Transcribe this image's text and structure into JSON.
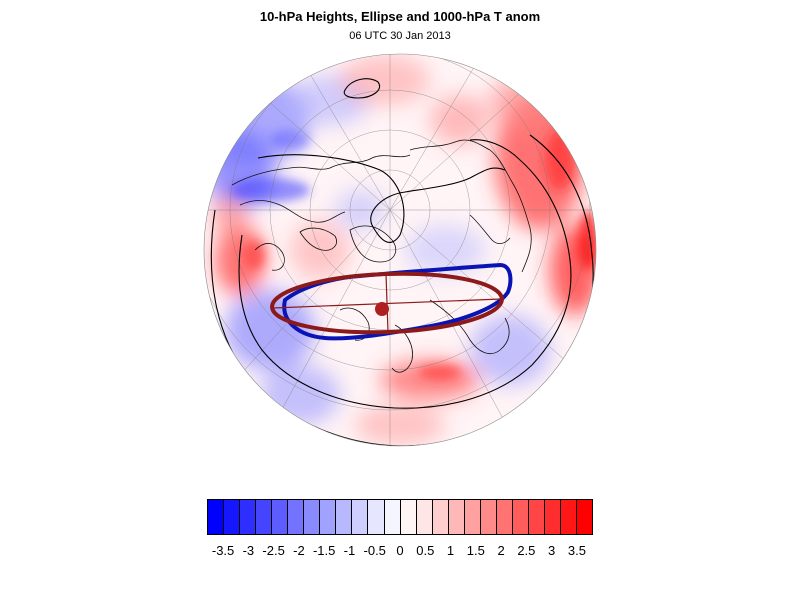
{
  "title": "10-hPa Heights, Ellipse and 1000-hPa T anom",
  "subtitle": "06 UTC 30 Jan 2013",
  "colors": {
    "negative": "#0000ff",
    "positive": "#ff0000",
    "height_contour": "#000000",
    "blue_contour": "#0a14b4",
    "ellipse": "#8c1a1a",
    "ellipse_center": "#b02020"
  },
  "colorbar": {
    "labels": [
      "-3.5",
      "-3",
      "-2.5",
      "-2",
      "-1.5",
      "-1",
      "-0.5",
      "0",
      "0.5",
      "1",
      "1.5",
      "2",
      "2.5",
      "3",
      "3.5"
    ],
    "colors": [
      "#0000ff",
      "#1717ff",
      "#2e2eff",
      "#4545ff",
      "#5c5cff",
      "#7373ff",
      "#8a8aff",
      "#a1a1ff",
      "#b8b8ff",
      "#cfcfff",
      "#e6e6ff",
      "#f5f5ff",
      "#fff5f5",
      "#ffe6e6",
      "#ffcfcf",
      "#ffb8b8",
      "#ffa1a1",
      "#ff8a8a",
      "#ff7373",
      "#ff5c5c",
      "#ff4545",
      "#ff2e2e",
      "#ff1717",
      "#ff0000"
    ]
  }
}
